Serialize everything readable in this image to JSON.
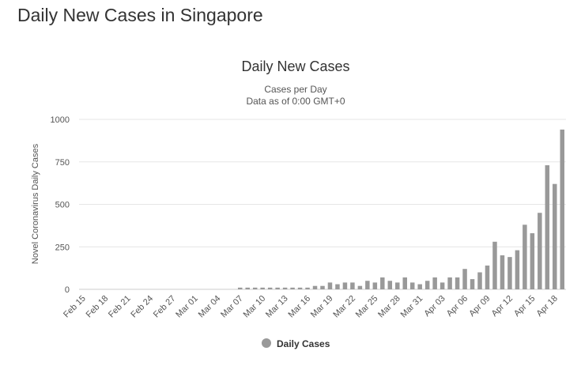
{
  "page": {
    "title": "Daily New Cases in Singapore"
  },
  "chart_data": {
    "type": "bar",
    "title": "Daily New Cases",
    "subtitle_lines": [
      "Cases per Day",
      "Data as of 0:00 GMT+0"
    ],
    "ylabel": "Novel Coronavirus Daily Cases",
    "xlabel": "",
    "ylim": [
      0,
      1000
    ],
    "yticks": [
      0,
      250,
      500,
      750,
      1000
    ],
    "grid": true,
    "legend_position": "bottom-center",
    "x_tick_labels": [
      "Feb 15",
      "Feb 18",
      "Feb 21",
      "Feb 24",
      "Feb 27",
      "Mar 01",
      "Mar 04",
      "Mar 07",
      "Mar 10",
      "Mar 13",
      "Mar 16",
      "Mar 19",
      "Mar 22",
      "Mar 25",
      "Mar 28",
      "Mar 31",
      "Apr 03",
      "Apr 06",
      "Apr 09",
      "Apr 12",
      "Apr 15",
      "Apr 18"
    ],
    "categories": [
      "Feb 15",
      "Feb 16",
      "Feb 17",
      "Feb 18",
      "Feb 19",
      "Feb 20",
      "Feb 21",
      "Feb 22",
      "Feb 23",
      "Feb 24",
      "Feb 25",
      "Feb 26",
      "Feb 27",
      "Feb 28",
      "Feb 29",
      "Mar 01",
      "Mar 02",
      "Mar 03",
      "Mar 04",
      "Mar 05",
      "Mar 06",
      "Mar 07",
      "Mar 08",
      "Mar 09",
      "Mar 10",
      "Mar 11",
      "Mar 12",
      "Mar 13",
      "Mar 14",
      "Mar 15",
      "Mar 16",
      "Mar 17",
      "Mar 18",
      "Mar 19",
      "Mar 20",
      "Mar 21",
      "Mar 22",
      "Mar 23",
      "Mar 24",
      "Mar 25",
      "Mar 26",
      "Mar 27",
      "Mar 28",
      "Mar 29",
      "Mar 30",
      "Mar 31",
      "Apr 01",
      "Apr 02",
      "Apr 03",
      "Apr 04",
      "Apr 05",
      "Apr 06",
      "Apr 07",
      "Apr 08",
      "Apr 09",
      "Apr 10",
      "Apr 11",
      "Apr 12",
      "Apr 13",
      "Apr 14",
      "Apr 15",
      "Apr 16",
      "Apr 17",
      "Apr 18",
      "Apr 19"
    ],
    "series": [
      {
        "name": "Daily Cases",
        "color": "#999999",
        "values": [
          0,
          0,
          0,
          0,
          0,
          0,
          0,
          0,
          0,
          0,
          0,
          0,
          0,
          0,
          0,
          0,
          0,
          0,
          0,
          0,
          0,
          10,
          10,
          10,
          10,
          10,
          10,
          10,
          10,
          10,
          10,
          20,
          20,
          40,
          30,
          40,
          40,
          20,
          50,
          40,
          70,
          50,
          40,
          70,
          40,
          30,
          50,
          70,
          40,
          70,
          70,
          120,
          60,
          100,
          140,
          280,
          200,
          190,
          230,
          380,
          330,
          450,
          730,
          620,
          940
        ]
      }
    ]
  }
}
